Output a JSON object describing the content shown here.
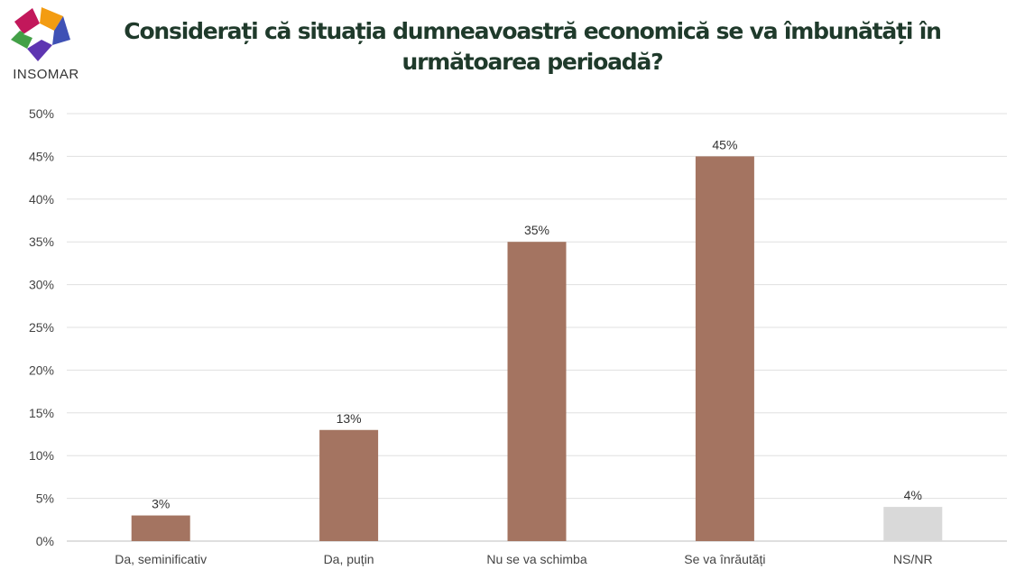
{
  "logo": {
    "text": "INSOMAR"
  },
  "chart_data": {
    "type": "bar",
    "title": "Considerați că situația dumneavoastră economică se va îmbunătăți în următoarea perioadă?",
    "categories": [
      "Da, seminificativ",
      "Da, puțin",
      "Nu se va schimba",
      "Se va înrăutăți",
      "NS/NR"
    ],
    "values": [
      3,
      13,
      35,
      45,
      4
    ],
    "value_labels": [
      "3%",
      "13%",
      "35%",
      "45%",
      "4%"
    ],
    "bar_colors": [
      "#a47461",
      "#a47461",
      "#a47461",
      "#a47461",
      "#d9d9d9"
    ],
    "ylim": [
      0,
      50
    ],
    "yticks": [
      0,
      5,
      10,
      15,
      20,
      25,
      30,
      35,
      40,
      45,
      50
    ],
    "ytick_labels": [
      "0%",
      "5%",
      "10%",
      "15%",
      "20%",
      "25%",
      "30%",
      "35%",
      "40%",
      "45%",
      "50%"
    ],
    "grid": true,
    "xlabel": "",
    "ylabel": ""
  }
}
